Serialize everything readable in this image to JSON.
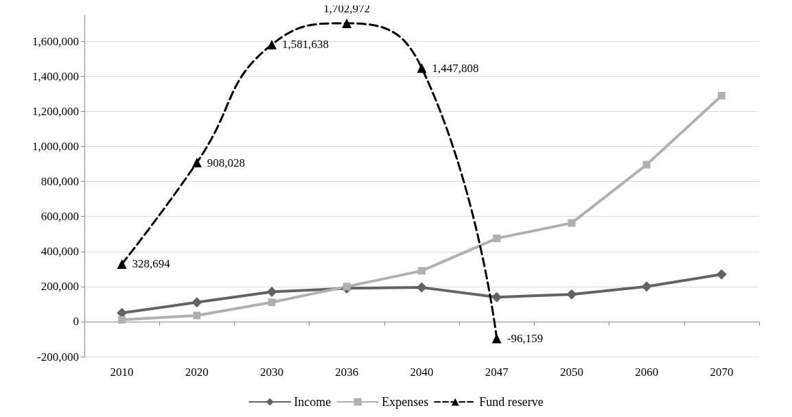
{
  "chart_data": {
    "type": "line",
    "categories": [
      "2010",
      "2020",
      "2030",
      "2036",
      "2040",
      "2047",
      "2050",
      "2060",
      "2070"
    ],
    "ylim": [
      -200000,
      1750000
    ],
    "yticks": [
      {
        "value": -200000,
        "label": "-200,000"
      },
      {
        "value": 0,
        "label": "0"
      },
      {
        "value": 200000,
        "label": "200,000"
      },
      {
        "value": 400000,
        "label": "400,000"
      },
      {
        "value": 600000,
        "label": "600,000"
      },
      {
        "value": 800000,
        "label": "800,000"
      },
      {
        "value": 1000000,
        "label": "1,000,000"
      },
      {
        "value": 1200000,
        "label": "1,200,000"
      },
      {
        "value": 1400000,
        "label": "1,400,000"
      },
      {
        "value": 1600000,
        "label": "1,600,000"
      }
    ],
    "grid": "y",
    "legend": "bottom",
    "series": [
      {
        "name": "Income",
        "color": "#636363",
        "marker": "diamond",
        "line_style": "solid",
        "values": [
          50000,
          110000,
          170000,
          190000,
          195000,
          140000,
          155000,
          200000,
          270000
        ]
      },
      {
        "name": "Expenses",
        "color": "#b0b0b0",
        "marker": "square",
        "line_style": "solid",
        "values": [
          10000,
          35000,
          110000,
          200000,
          290000,
          475000,
          563000,
          896000,
          1290000
        ]
      },
      {
        "name": "Fund reserve",
        "color": "#000000",
        "marker": "triangle",
        "line_style": "dashed",
        "values": [
          328694,
          908028,
          1581638,
          1702972,
          1447808,
          -96159,
          null,
          null,
          null
        ],
        "value_labels": [
          "328,694",
          "908,028",
          "1,581,638",
          "1,702,972",
          "1,447,808",
          "-96,159",
          null,
          null,
          null
        ]
      }
    ]
  }
}
